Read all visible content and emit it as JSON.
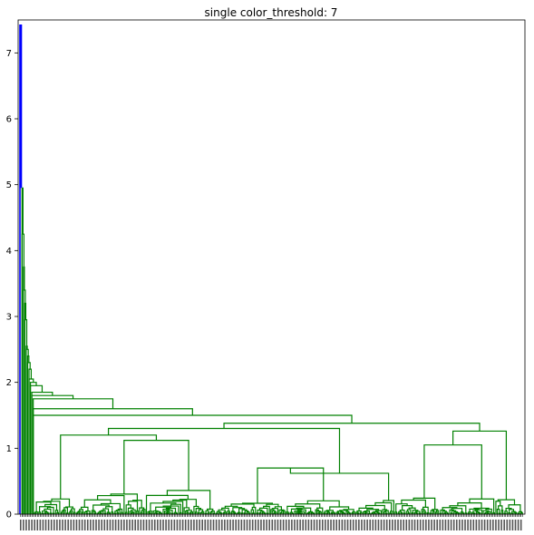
{
  "chart_data": {
    "type": "dendrogram",
    "title": "single color_threshold: 7",
    "xlabel": "",
    "ylabel": "",
    "ylim": [
      0,
      7.5
    ],
    "yticks": [
      "0",
      "1",
      "2",
      "3",
      "4",
      "5",
      "6",
      "7"
    ],
    "grid": false,
    "legend": "none",
    "color_threshold": 7,
    "root_height": 7.42,
    "colors": {
      "above_threshold": "#0000ff",
      "cluster": "#008000",
      "axes": "#000000",
      "background": "#ffffff"
    },
    "leaf_count_estimate": 360,
    "chain_merges": [
      4.95,
      4.25,
      3.75,
      3.4,
      3.2,
      2.95,
      2.55,
      2.5,
      2.4,
      2.3,
      2.2,
      2.05,
      2.0,
      1.95,
      1.85,
      1.8,
      1.75,
      1.6,
      1.5
    ],
    "major_merges": [
      {
        "height": 1.42,
        "span": [
          0.1,
          0.27
        ]
      },
      {
        "height": 1.38,
        "span": [
          0.12,
          0.4
        ]
      },
      {
        "height": 1.38,
        "span": [
          0.4,
          0.74
        ]
      },
      {
        "height": 1.33,
        "span": [
          0.74,
          0.78
        ]
      },
      {
        "height": 1.3,
        "span": [
          0.2,
          0.69
        ]
      },
      {
        "height": 1.26,
        "span": [
          0.78,
          0.96
        ]
      },
      {
        "height": 1.2,
        "span": [
          0.76,
          0.95
        ]
      },
      {
        "height": 1.12,
        "span": [
          0.74,
          0.94
        ]
      },
      {
        "height": 1.05,
        "span": [
          0.75,
          0.9
        ]
      },
      {
        "height": 0.95,
        "span": [
          0.22,
          0.32
        ]
      },
      {
        "height": 0.85,
        "span": [
          0.32,
          0.42
        ]
      },
      {
        "height": 0.7,
        "span": [
          0.42,
          0.54
        ]
      },
      {
        "height": 0.62,
        "span": [
          0.5,
          0.69
        ]
      },
      {
        "height": 0.5,
        "span": [
          0.55,
          0.66
        ]
      }
    ]
  }
}
